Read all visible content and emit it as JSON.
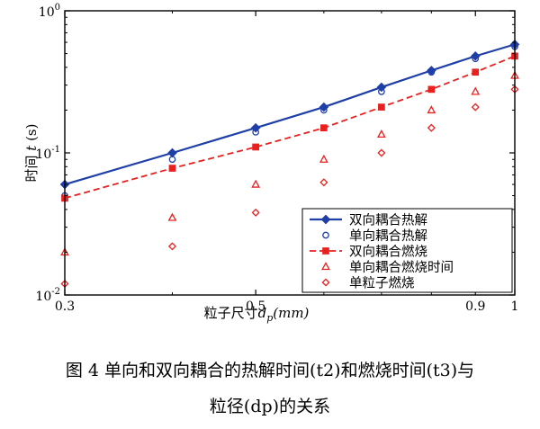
{
  "chart_data": {
    "type": "scatter",
    "x_scale": "log",
    "y_scale": "log",
    "xlim": [
      0.3,
      1
    ],
    "ylim": [
      0.01,
      1
    ],
    "x_ticks": [
      {
        "value": 0.3,
        "label": "0.3"
      },
      {
        "value": 0.5,
        "label": "0.5"
      },
      {
        "value": 0.9,
        "label": "0.9"
      },
      {
        "value": 1,
        "label": "1"
      }
    ],
    "y_ticks": [
      {
        "value": 1,
        "base": "10",
        "exp": "0"
      },
      {
        "value": 0.1,
        "base": "10",
        "exp": "-1"
      },
      {
        "value": 0.01,
        "base": "10",
        "exp": "-2"
      }
    ],
    "xlabel": {
      "text": "粒子尺寸",
      "var": "d",
      "sub": "p",
      "unit": "(mm)"
    },
    "ylabel": {
      "text": "时间",
      "var": "t",
      "unit": "(s)"
    },
    "grid": false,
    "legend_position": "bottom-right",
    "series": [
      {
        "name": "双向耦合热解",
        "color": "#1f3fa8",
        "style": "solid-line-diamond",
        "x": [
          0.3,
          0.4,
          0.5,
          0.6,
          0.7,
          0.8,
          0.9,
          1.0
        ],
        "y": [
          0.06,
          0.1,
          0.15,
          0.21,
          0.29,
          0.38,
          0.48,
          0.58
        ]
      },
      {
        "name": "单向耦合热解",
        "color": "#1f3fa8",
        "style": "open-circle",
        "x": [
          0.3,
          0.4,
          0.5,
          0.6,
          0.7,
          0.8,
          0.9,
          1.0
        ],
        "y": [
          0.05,
          0.09,
          0.14,
          0.2,
          0.27,
          0.37,
          0.46,
          0.56
        ]
      },
      {
        "name": "双向耦合燃烧",
        "color": "#e82020",
        "style": "dashed-line-square",
        "x": [
          0.3,
          0.4,
          0.5,
          0.6,
          0.7,
          0.8,
          0.9,
          1.0
        ],
        "y": [
          0.048,
          0.078,
          0.11,
          0.15,
          0.21,
          0.28,
          0.37,
          0.48
        ]
      },
      {
        "name": "单向耦合燃烧时间",
        "color": "#e82020",
        "style": "open-triangle",
        "x": [
          0.3,
          0.4,
          0.5,
          0.6,
          0.7,
          0.8,
          0.9,
          1.0
        ],
        "y": [
          0.02,
          0.035,
          0.06,
          0.09,
          0.135,
          0.2,
          0.27,
          0.35
        ]
      },
      {
        "name": "单粒子燃烧",
        "color": "#e82020",
        "style": "open-diamond",
        "x": [
          0.3,
          0.4,
          0.5,
          0.6,
          0.7,
          0.8,
          0.9,
          1.0
        ],
        "y": [
          0.012,
          0.022,
          0.038,
          0.062,
          0.1,
          0.15,
          0.21,
          0.28
        ]
      }
    ]
  },
  "caption": {
    "line1": "图 4 单向和双向耦合的热解时间(t2)和燃烧时间(t3)与",
    "line2": "粒径(dp)的关系"
  }
}
